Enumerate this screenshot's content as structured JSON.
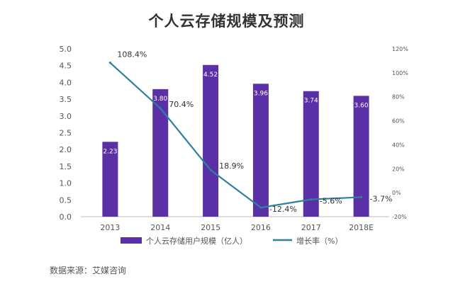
{
  "chart_data": {
    "type": "bar",
    "title": "个人云存储规模及预测",
    "categories": [
      "2013",
      "2014",
      "2015",
      "2016",
      "2017",
      "2018E"
    ],
    "series": [
      {
        "name": "个人云存储用户规模（亿人）",
        "kind": "bar",
        "axis": "left",
        "values": [
          2.23,
          3.8,
          4.52,
          3.96,
          3.74,
          3.6
        ],
        "labels": [
          "2.23",
          "3.80",
          "4.52",
          "3.96",
          "3.74",
          "3.60"
        ]
      },
      {
        "name": "增长率（%）",
        "kind": "line",
        "axis": "right",
        "values": [
          108.4,
          70.4,
          18.9,
          -12.4,
          -5.6,
          -3.7
        ],
        "labels": [
          "108.4%",
          "70.4%",
          "18.9%",
          "-12.4%",
          "-5.6%",
          "-3.7%"
        ]
      }
    ],
    "left_axis": {
      "ylim": [
        0,
        5.0
      ],
      "ticks": [
        "0.0",
        "0.5",
        "1.0",
        "1.5",
        "2.0",
        "2.5",
        "3.0",
        "3.5",
        "4.0",
        "4.5",
        "5.0"
      ]
    },
    "right_axis": {
      "ylim": [
        -20,
        120
      ],
      "ticks": [
        "-20%",
        "0%",
        "20%",
        "40%",
        "60%",
        "80%",
        "100%",
        "120%"
      ]
    },
    "grid": false,
    "legend_position": "bottom",
    "colors": {
      "bar": "#5b2fa6",
      "line": "#2f7fa0",
      "text": "#555555",
      "title": "#333333"
    }
  },
  "source": "数据来源：艾媒咨询"
}
